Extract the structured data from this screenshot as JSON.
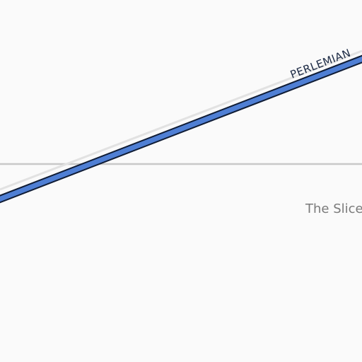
{
  "map": {
    "colors": {
      "background": "#fafafa",
      "minor_road": "#c8c8c8",
      "major_road_fill": "#4f7fd4",
      "major_road_casing": "#0f1c35",
      "road_shadow": "#e2e2e2",
      "street_label": "#1c2a44",
      "poi_label": "#7a7a7a"
    },
    "streets": [
      {
        "name": "PERLEMIAN"
      }
    ],
    "places": [
      {
        "name": "The Slice"
      }
    ]
  }
}
